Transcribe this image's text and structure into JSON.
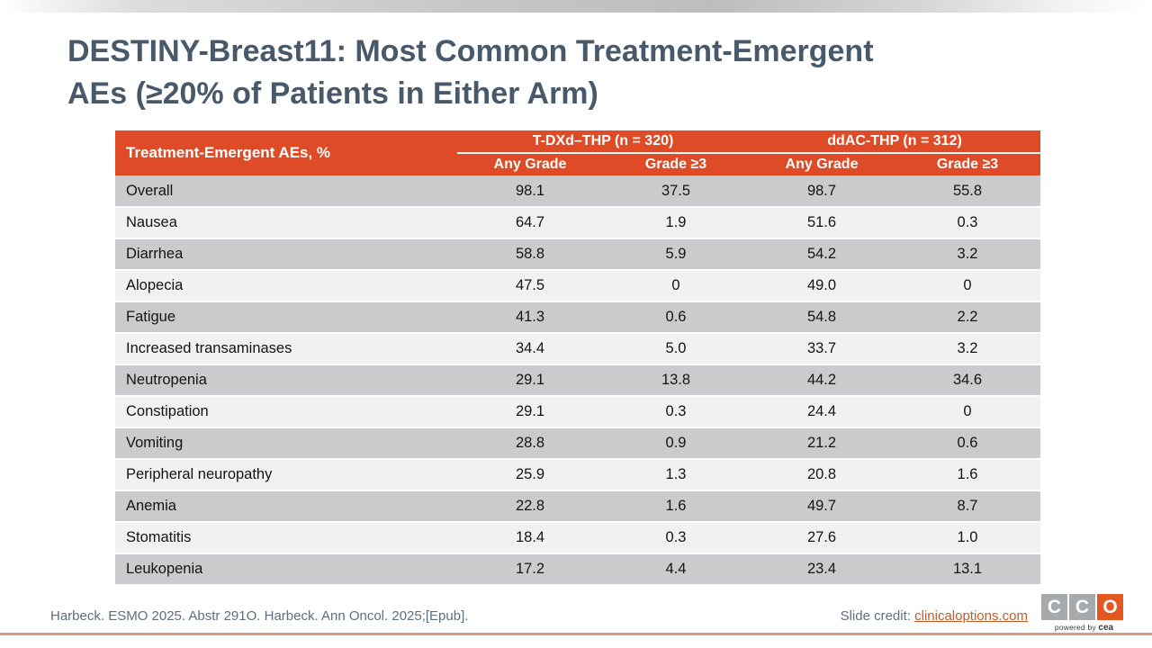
{
  "slide": {
    "title_line1": "DESTINY-Breast11: Most Common Treatment-Emergent",
    "title_line2": "AEs (≥20% of Patients in Either Arm)"
  },
  "table": {
    "corner_header": "Treatment-Emergent AEs, %",
    "column_groups": [
      {
        "label": "T-DXd–THP (n = 320)",
        "subcolumns": [
          "Any Grade",
          "Grade ≥3"
        ]
      },
      {
        "label": "ddAC-THP (n = 312)",
        "subcolumns": [
          "Any Grade",
          "Grade ≥3"
        ]
      }
    ],
    "rows": [
      {
        "label": "Overall",
        "values": [
          "98.1",
          "37.5",
          "98.7",
          "55.8"
        ]
      },
      {
        "label": "Nausea",
        "values": [
          "64.7",
          "1.9",
          "51.6",
          "0.3"
        ]
      },
      {
        "label": "Diarrhea",
        "values": [
          "58.8",
          "5.9",
          "54.2",
          "3.2"
        ]
      },
      {
        "label": "Alopecia",
        "values": [
          "47.5",
          "0",
          "49.0",
          "0"
        ]
      },
      {
        "label": "Fatigue",
        "values": [
          "41.3",
          "0.6",
          "54.8",
          "2.2"
        ]
      },
      {
        "label": "Increased transaminases",
        "values": [
          "34.4",
          "5.0",
          "33.7",
          "3.2"
        ]
      },
      {
        "label": "Neutropenia",
        "values": [
          "29.1",
          "13.8",
          "44.2",
          "34.6"
        ]
      },
      {
        "label": "Constipation",
        "values": [
          "29.1",
          "0.3",
          "24.4",
          "0"
        ]
      },
      {
        "label": "Vomiting",
        "values": [
          "28.8",
          "0.9",
          "21.2",
          "0.6"
        ]
      },
      {
        "label": "Peripheral neuropathy",
        "values": [
          "25.9",
          "1.3",
          "20.8",
          "1.6"
        ]
      },
      {
        "label": "Anemia",
        "values": [
          "22.8",
          "1.6",
          "49.7",
          "8.7"
        ]
      },
      {
        "label": "Stomatitis",
        "values": [
          "18.4",
          "0.3",
          "27.6",
          "1.0"
        ]
      },
      {
        "label": "Leukopenia",
        "values": [
          "17.2",
          "4.4",
          "23.4",
          "13.1"
        ]
      }
    ]
  },
  "footer": {
    "reference": "Harbeck. ESMO 2025. Abstr 291O. Harbeck. Ann Oncol. 2025;[Epub].",
    "slide_credit_label": "Slide credit: ",
    "slide_credit_link": "clinicaloptions.com",
    "logo": {
      "blocks": [
        {
          "letter": "C",
          "color": "#a7aaad"
        },
        {
          "letter": "C",
          "color": "#a7aaad"
        },
        {
          "letter": "O",
          "color": "#e4571f"
        }
      ],
      "powered_by_prefix": "powered by ",
      "powered_by_brand": "cea"
    }
  },
  "colors": {
    "header_accent": "#de4b26",
    "row_dark": "#cbcbcd",
    "row_light": "#f1f1f2",
    "title_text": "#47596a",
    "footer_text": "#5b6f80",
    "link": "#c45a26",
    "bottom_line": "#d79c7c"
  }
}
